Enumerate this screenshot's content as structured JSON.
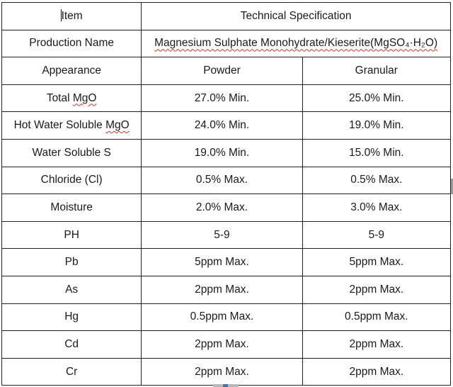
{
  "table": {
    "header": {
      "item_label": "Item",
      "spec_label": "Technical Specification"
    },
    "product_row": {
      "label": "Production Name",
      "value": "Magnesium Sulphate Monohydrate/Kieserite(MgSO₄·H₂O)"
    },
    "form_row": {
      "label": "Appearance",
      "powder": "Powder",
      "granular": "Granular"
    },
    "rows": [
      {
        "item": "Total MgO",
        "powder": "27.0% Min.",
        "granular": "25.0% Min."
      },
      {
        "item": "Hot Water Soluble MgO",
        "powder": "24.0% Min.",
        "granular": "19.0% Min."
      },
      {
        "item": "Water Soluble S",
        "powder": "19.0% Min.",
        "granular": "15.0% Min."
      },
      {
        "item": "Chloride (Cl)",
        "powder": "0.5% Max.",
        "granular": "0.5% Max."
      },
      {
        "item": "Moisture",
        "powder": "2.0% Max.",
        "granular": "3.0% Max."
      },
      {
        "item": "PH",
        "powder": "5-9",
        "granular": "5-9"
      },
      {
        "item": "Pb",
        "powder": "5ppm Max.",
        "granular": "5ppm Max."
      },
      {
        "item": "As",
        "powder": "2ppm Max.",
        "granular": "2ppm Max."
      },
      {
        "item": "Hg",
        "powder": "0.5ppm Max.",
        "granular": "0.5ppm Max."
      },
      {
        "item": "Cd",
        "powder": "2ppm Max.",
        "granular": "2ppm Max."
      },
      {
        "item": "Cr",
        "powder": "2ppm Max.",
        "granular": "2ppm Max."
      }
    ]
  }
}
